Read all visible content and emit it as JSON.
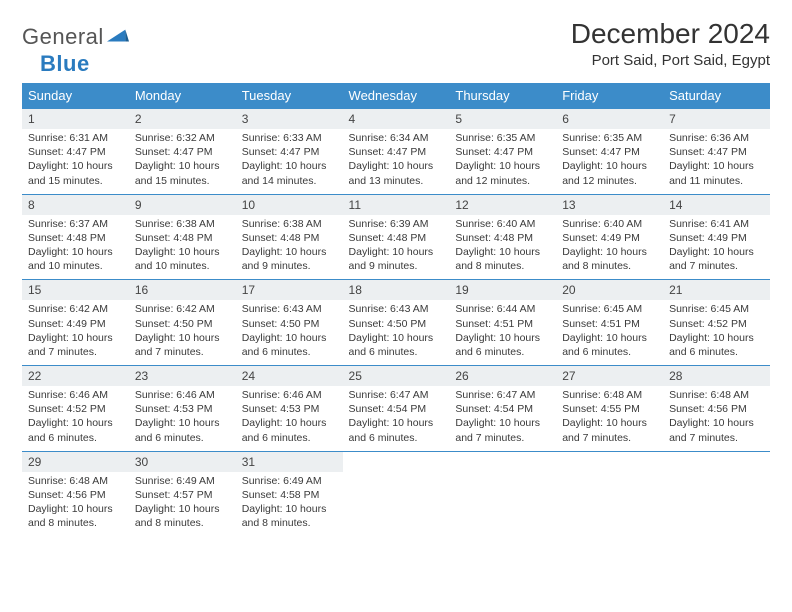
{
  "brand": {
    "word1": "General",
    "word2": "Blue"
  },
  "title": "December 2024",
  "location": "Port Said, Port Said, Egypt",
  "colors": {
    "header_bg": "#3c8cc9",
    "header_fg": "#ffffff",
    "daynum_bg": "#eceff1",
    "rule": "#3c8cc9",
    "text": "#3a3a3a",
    "brand_blue": "#2a7bbf"
  },
  "daysOfWeek": [
    "Sunday",
    "Monday",
    "Tuesday",
    "Wednesday",
    "Thursday",
    "Friday",
    "Saturday"
  ],
  "weeks": [
    [
      {
        "n": "1",
        "sr": "6:31 AM",
        "ss": "4:47 PM",
        "dl": "10 hours and 15 minutes."
      },
      {
        "n": "2",
        "sr": "6:32 AM",
        "ss": "4:47 PM",
        "dl": "10 hours and 15 minutes."
      },
      {
        "n": "3",
        "sr": "6:33 AM",
        "ss": "4:47 PM",
        "dl": "10 hours and 14 minutes."
      },
      {
        "n": "4",
        "sr": "6:34 AM",
        "ss": "4:47 PM",
        "dl": "10 hours and 13 minutes."
      },
      {
        "n": "5",
        "sr": "6:35 AM",
        "ss": "4:47 PM",
        "dl": "10 hours and 12 minutes."
      },
      {
        "n": "6",
        "sr": "6:35 AM",
        "ss": "4:47 PM",
        "dl": "10 hours and 12 minutes."
      },
      {
        "n": "7",
        "sr": "6:36 AM",
        "ss": "4:47 PM",
        "dl": "10 hours and 11 minutes."
      }
    ],
    [
      {
        "n": "8",
        "sr": "6:37 AM",
        "ss": "4:48 PM",
        "dl": "10 hours and 10 minutes."
      },
      {
        "n": "9",
        "sr": "6:38 AM",
        "ss": "4:48 PM",
        "dl": "10 hours and 10 minutes."
      },
      {
        "n": "10",
        "sr": "6:38 AM",
        "ss": "4:48 PM",
        "dl": "10 hours and 9 minutes."
      },
      {
        "n": "11",
        "sr": "6:39 AM",
        "ss": "4:48 PM",
        "dl": "10 hours and 9 minutes."
      },
      {
        "n": "12",
        "sr": "6:40 AM",
        "ss": "4:48 PM",
        "dl": "10 hours and 8 minutes."
      },
      {
        "n": "13",
        "sr": "6:40 AM",
        "ss": "4:49 PM",
        "dl": "10 hours and 8 minutes."
      },
      {
        "n": "14",
        "sr": "6:41 AM",
        "ss": "4:49 PM",
        "dl": "10 hours and 7 minutes."
      }
    ],
    [
      {
        "n": "15",
        "sr": "6:42 AM",
        "ss": "4:49 PM",
        "dl": "10 hours and 7 minutes."
      },
      {
        "n": "16",
        "sr": "6:42 AM",
        "ss": "4:50 PM",
        "dl": "10 hours and 7 minutes."
      },
      {
        "n": "17",
        "sr": "6:43 AM",
        "ss": "4:50 PM",
        "dl": "10 hours and 6 minutes."
      },
      {
        "n": "18",
        "sr": "6:43 AM",
        "ss": "4:50 PM",
        "dl": "10 hours and 6 minutes."
      },
      {
        "n": "19",
        "sr": "6:44 AM",
        "ss": "4:51 PM",
        "dl": "10 hours and 6 minutes."
      },
      {
        "n": "20",
        "sr": "6:45 AM",
        "ss": "4:51 PM",
        "dl": "10 hours and 6 minutes."
      },
      {
        "n": "21",
        "sr": "6:45 AM",
        "ss": "4:52 PM",
        "dl": "10 hours and 6 minutes."
      }
    ],
    [
      {
        "n": "22",
        "sr": "6:46 AM",
        "ss": "4:52 PM",
        "dl": "10 hours and 6 minutes."
      },
      {
        "n": "23",
        "sr": "6:46 AM",
        "ss": "4:53 PM",
        "dl": "10 hours and 6 minutes."
      },
      {
        "n": "24",
        "sr": "6:46 AM",
        "ss": "4:53 PM",
        "dl": "10 hours and 6 minutes."
      },
      {
        "n": "25",
        "sr": "6:47 AM",
        "ss": "4:54 PM",
        "dl": "10 hours and 6 minutes."
      },
      {
        "n": "26",
        "sr": "6:47 AM",
        "ss": "4:54 PM",
        "dl": "10 hours and 7 minutes."
      },
      {
        "n": "27",
        "sr": "6:48 AM",
        "ss": "4:55 PM",
        "dl": "10 hours and 7 minutes."
      },
      {
        "n": "28",
        "sr": "6:48 AM",
        "ss": "4:56 PM",
        "dl": "10 hours and 7 minutes."
      }
    ],
    [
      {
        "n": "29",
        "sr": "6:48 AM",
        "ss": "4:56 PM",
        "dl": "10 hours and 8 minutes."
      },
      {
        "n": "30",
        "sr": "6:49 AM",
        "ss": "4:57 PM",
        "dl": "10 hours and 8 minutes."
      },
      {
        "n": "31",
        "sr": "6:49 AM",
        "ss": "4:58 PM",
        "dl": "10 hours and 8 minutes."
      },
      null,
      null,
      null,
      null
    ]
  ],
  "labels": {
    "sunrise": "Sunrise: ",
    "sunset": "Sunset: ",
    "daylight": "Daylight: "
  }
}
